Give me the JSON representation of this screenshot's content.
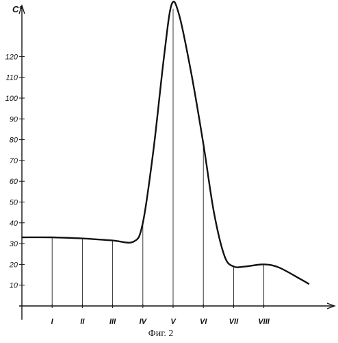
{
  "chart_data": {
    "type": "line",
    "ylabel": "C°",
    "caption": "Фиг. 2",
    "ylim": [
      0,
      150
    ],
    "y_ticks": [
      10,
      20,
      30,
      40,
      50,
      60,
      70,
      80,
      90,
      100,
      110,
      120
    ],
    "x_ticks": [
      {
        "label": "I",
        "x": 1
      },
      {
        "label": "II",
        "x": 2
      },
      {
        "label": "III",
        "x": 3
      },
      {
        "label": "IV",
        "x": 4
      },
      {
        "label": "V",
        "x": 5
      },
      {
        "label": "VI",
        "x": 6
      },
      {
        "label": "VII",
        "x": 7
      },
      {
        "label": "VIII",
        "x": 8
      }
    ],
    "xlim": [
      0,
      10.5
    ],
    "grid": "vertical drop lines at each stage",
    "series": [
      {
        "values": [
          {
            "x": 0,
            "y": 33
          },
          {
            "x": 1,
            "y": 33
          },
          {
            "x": 2,
            "y": 32.5
          },
          {
            "x": 3,
            "y": 31.5
          },
          {
            "x": 3.7,
            "y": 31
          },
          {
            "x": 4,
            "y": 40
          },
          {
            "x": 4.35,
            "y": 75
          },
          {
            "x": 4.7,
            "y": 120
          },
          {
            "x": 4.95,
            "y": 145
          },
          {
            "x": 5.2,
            "y": 140
          },
          {
            "x": 5.6,
            "y": 112
          },
          {
            "x": 6,
            "y": 78
          },
          {
            "x": 6.35,
            "y": 45
          },
          {
            "x": 6.7,
            "y": 24
          },
          {
            "x": 7,
            "y": 19
          },
          {
            "x": 7.4,
            "y": 19
          },
          {
            "x": 8,
            "y": 20
          },
          {
            "x": 8.5,
            "y": 18.5
          },
          {
            "x": 9.2,
            "y": 13
          },
          {
            "x": 9.5,
            "y": 10.5
          }
        ]
      }
    ],
    "stage_drop_values": [
      {
        "x": 1,
        "y": 33
      },
      {
        "x": 2,
        "y": 32.5
      },
      {
        "x": 3,
        "y": 31.5
      },
      {
        "x": 4,
        "y": 40
      },
      {
        "x": 5,
        "y": 143
      },
      {
        "x": 6,
        "y": 78
      },
      {
        "x": 7,
        "y": 19
      },
      {
        "x": 8,
        "y": 20
      }
    ],
    "line_color": "#111111"
  }
}
